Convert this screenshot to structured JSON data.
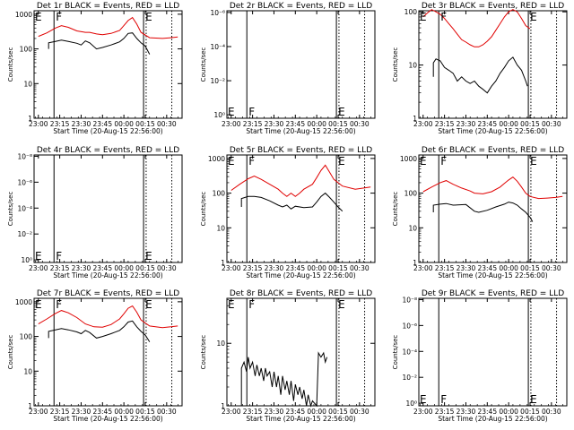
{
  "chart_data": {
    "type": "line",
    "panels": [
      {
        "id": "1",
        "title": "Det 1r BLACK = Events, RED = LLD",
        "ylabel": "Counts/sec",
        "xlabel": "Start Time (20-Aug-15 22:56:00)",
        "y_ticks": [
          "1",
          "10",
          "100",
          "1000"
        ],
        "y_log_range": [
          0,
          3.1
        ],
        "markers": [
          "E",
          "F",
          "E"
        ],
        "series": [
          {
            "color": "#e00000",
            "x": [
              23.0,
              23.1,
              23.2,
              23.27,
              23.35,
              23.45,
              23.55,
              23.6,
              23.68,
              23.75,
              23.85,
              23.95,
              24.0,
              24.05,
              24.1,
              24.15,
              24.2,
              24.3,
              24.45,
              24.55,
              24.63
            ],
            "y": [
              230,
              290,
              400,
              470,
              420,
              330,
              300,
              300,
              270,
              255,
              280,
              340,
              470,
              660,
              800,
              520,
              300,
              210,
              200,
              210,
              220
            ]
          },
          {
            "color": "#000000",
            "x": [
              23.12,
              23.12,
              23.2,
              23.27,
              23.35,
              23.45,
              23.5,
              23.55,
              23.6,
              23.68,
              23.75,
              23.85,
              23.95,
              24.0,
              24.05,
              24.1,
              24.15,
              24.2,
              24.25,
              24.3
            ],
            "y": [
              100,
              150,
              165,
              180,
              165,
              145,
              130,
              170,
              150,
              100,
              110,
              130,
              160,
              200,
              280,
              290,
              200,
              150,
              120,
              70
            ]
          }
        ]
      },
      {
        "id": "2",
        "title": "Det 2r BLACK = Events, RED = LLD",
        "ylabel": "Counts/sec",
        "xlabel": "Start Time (20-Aug-15 22:56:00)",
        "y_ticks": [
          "10⁰",
          "10⁻²",
          "10⁻⁴",
          "10⁻⁶"
        ],
        "y_tick_pos": [
          0,
          2,
          4,
          6
        ],
        "y_log_range": [
          -0.2,
          6.1
        ],
        "markers": [
          "E",
          "F",
          "E"
        ],
        "series": []
      },
      {
        "id": "3",
        "title": "Det 3r BLACK = Events, RED = LLD",
        "ylabel": "Counts/sec",
        "xlabel": "Start Time (20-Aug-15 22:56:00)",
        "y_ticks": [
          "1",
          "10",
          "100"
        ],
        "y_log_range": [
          0,
          2.02
        ],
        "markers": [
          "E",
          "F",
          "E"
        ],
        "series": [
          {
            "color": "#e00000",
            "x": [
              23.0,
              23.05,
              23.1,
              23.15,
              23.2,
              23.25,
              23.3,
              23.35,
              23.4,
              23.45,
              23.5,
              23.55,
              23.6,
              23.65,
              23.7,
              23.75,
              23.8,
              23.85,
              23.9,
              23.95,
              24.0,
              24.05,
              24.1,
              24.15,
              24.2,
              24.25
            ],
            "y": [
              80,
              95,
              110,
              100,
              90,
              75,
              60,
              48,
              38,
              30,
              27,
              24,
              22,
              22,
              24,
              28,
              34,
              45,
              60,
              80,
              100,
              110,
              100,
              75,
              55,
              48
            ]
          },
          {
            "color": "#000000",
            "x": [
              23.12,
              23.12,
              23.15,
              23.2,
              23.25,
              23.3,
              23.35,
              23.4,
              23.45,
              23.5,
              23.55,
              23.6,
              23.65,
              23.7,
              23.75,
              23.8,
              23.85,
              23.9,
              23.95,
              24.0,
              24.05,
              24.1,
              24.15,
              24.2,
              24.22
            ],
            "y": [
              6,
              11,
              13,
              12,
              9,
              8,
              7,
              5,
              6,
              5,
              4.5,
              5,
              4,
              3.5,
              3,
              4,
              5,
              7,
              9,
              12,
              14,
              10,
              8,
              5,
              4
            ]
          }
        ]
      },
      {
        "id": "4",
        "title": "Det 4r BLACK = Events, RED = LLD",
        "ylabel": "Counts/sec",
        "xlabel": "Start Time (20-Aug-15 22:56:00)",
        "y_ticks": [
          "10⁰",
          "10⁻²",
          "10⁻⁴",
          "10⁻⁶",
          "10⁻⁸"
        ],
        "y_tick_pos": [
          0,
          2,
          4,
          6,
          8
        ],
        "y_log_range": [
          -0.2,
          8.1
        ],
        "markers": [
          "E",
          "F",
          "E"
        ],
        "series": []
      },
      {
        "id": "5",
        "title": "Det 5r BLACK = Events, RED = LLD",
        "ylabel": "Counts/sec",
        "xlabel": "Start Time (20-Aug-15 22:56:00)",
        "y_ticks": [
          "1",
          "10",
          "100",
          "1000"
        ],
        "y_log_range": [
          0,
          3.1
        ],
        "markers": [
          "E",
          "F",
          "E"
        ],
        "series": [
          {
            "color": "#e00000",
            "x": [
              23.0,
              23.1,
              23.2,
              23.27,
              23.35,
              23.45,
              23.55,
              23.6,
              23.65,
              23.7,
              23.75,
              23.8,
              23.85,
              23.95,
              24.0,
              24.05,
              24.1,
              24.15,
              24.2,
              24.3,
              24.45,
              24.55,
              24.63
            ],
            "y": [
              120,
              180,
              260,
              310,
              250,
              180,
              130,
              100,
              80,
              100,
              80,
              100,
              130,
              180,
              280,
              450,
              640,
              400,
              250,
              160,
              130,
              140,
              150
            ]
          },
          {
            "color": "#000000",
            "x": [
              23.12,
              23.12,
              23.2,
              23.27,
              23.35,
              23.45,
              23.55,
              23.6,
              23.65,
              23.7,
              23.75,
              23.85,
              23.95,
              24.0,
              24.05,
              24.1,
              24.15,
              24.2,
              24.25,
              24.3
            ],
            "y": [
              40,
              70,
              80,
              80,
              75,
              60,
              45,
              40,
              45,
              35,
              42,
              38,
              40,
              55,
              80,
              100,
              75,
              55,
              40,
              30
            ]
          }
        ]
      },
      {
        "id": "6",
        "title": "Det 6r BLACK = Events, RED = LLD",
        "ylabel": "Counts/sec",
        "xlabel": "Start Time (20-Aug-15 22:56:00)",
        "y_ticks": [
          "1",
          "10",
          "100",
          "1000"
        ],
        "y_log_range": [
          0,
          3.1
        ],
        "markers": [
          "E",
          "F",
          "E"
        ],
        "series": [
          {
            "color": "#e00000",
            "x": [
              23.0,
              23.1,
              23.2,
              23.27,
              23.35,
              23.45,
              23.55,
              23.6,
              23.7,
              23.8,
              23.9,
              23.95,
              24.0,
              24.05,
              24.1,
              24.15,
              24.2,
              24.25,
              24.35,
              24.45,
              24.55,
              24.63
            ],
            "y": [
              110,
              150,
              200,
              230,
              180,
              140,
              115,
              100,
              95,
              110,
              150,
              190,
              240,
              290,
              220,
              150,
              100,
              80,
              70,
              72,
              75,
              80
            ]
          },
          {
            "color": "#000000",
            "x": [
              23.12,
              23.12,
              23.2,
              23.27,
              23.35,
              23.5,
              23.6,
              23.65,
              23.75,
              23.85,
              23.95,
              24.0,
              24.05,
              24.1,
              24.15,
              24.2,
              24.25,
              24.28
            ],
            "y": [
              28,
              45,
              48,
              50,
              45,
              47,
              30,
              28,
              32,
              40,
              48,
              55,
              52,
              45,
              35,
              28,
              20,
              15
            ]
          }
        ]
      },
      {
        "id": "7",
        "title": "Det 7r BLACK = Events, RED = LLD",
        "ylabel": "Counts/sec",
        "xlabel": "Start Time (20-Aug-15 22:56:00)",
        "y_ticks": [
          "1",
          "10",
          "100",
          "1000"
        ],
        "y_log_range": [
          0,
          3.1
        ],
        "markers": [
          "E",
          "F",
          "E"
        ],
        "series": [
          {
            "color": "#e00000",
            "x": [
              23.0,
              23.1,
              23.2,
              23.27,
              23.35,
              23.45,
              23.55,
              23.65,
              23.75,
              23.85,
              23.95,
              24.0,
              24.05,
              24.1,
              24.15,
              24.2,
              24.3,
              24.45,
              24.55,
              24.63
            ],
            "y": [
              230,
              320,
              460,
              560,
              480,
              350,
              230,
              190,
              185,
              220,
              320,
              450,
              650,
              760,
              500,
              300,
              200,
              180,
              190,
              200
            ]
          },
          {
            "color": "#000000",
            "x": [
              23.12,
              23.12,
              23.2,
              23.27,
              23.35,
              23.45,
              23.5,
              23.55,
              23.6,
              23.68,
              23.75,
              23.85,
              23.95,
              24.0,
              24.05,
              24.1,
              24.15,
              24.2,
              24.25,
              24.3
            ],
            "y": [
              90,
              140,
              155,
              170,
              155,
              135,
              120,
              150,
              130,
              90,
              100,
              120,
              150,
              190,
              260,
              280,
              190,
              140,
              110,
              70
            ]
          }
        ]
      },
      {
        "id": "8",
        "title": "Det 8r BLACK = Events, RED = LLD",
        "ylabel": "Counts/sec",
        "xlabel": "Start Time (20-Aug-15 22:56:00)",
        "y_ticks": [
          "1",
          "10"
        ],
        "y_log_range": [
          0,
          1.72
        ],
        "markers": [
          "E",
          "F",
          "E"
        ],
        "series": [
          {
            "color": "#000000",
            "x": [
              23.12,
              23.12,
              23.15,
              23.18,
              23.2,
              23.22,
              23.25,
              23.28,
              23.3,
              23.33,
              23.35,
              23.38,
              23.4,
              23.42,
              23.45,
              23.48,
              23.5,
              23.53,
              23.55,
              23.58,
              23.6,
              23.63,
              23.65,
              23.68,
              23.7,
              23.73,
              23.75,
              23.78,
              23.8,
              23.83,
              23.85,
              23.88,
              23.9,
              23.93,
              23.95,
              24.0,
              24.02,
              24.05,
              24.08,
              24.1,
              24.12
            ],
            "y": [
              1,
              4,
              5,
              3.5,
              6,
              4,
              5,
              3,
              4.5,
              3,
              4,
              2.5,
              4,
              3,
              3.5,
              2,
              3.5,
              2,
              3,
              1.5,
              3,
              1.8,
              2.5,
              1.5,
              2.5,
              1.2,
              2.2,
              1.5,
              2,
              1.3,
              1.8,
              1,
              1.5,
              1,
              1.2,
              1,
              7,
              6,
              7,
              5,
              6
            ]
          }
        ]
      },
      {
        "id": "9",
        "title": "Det 9r BLACK = Events, RED = LLD",
        "ylabel": "Counts/sec",
        "xlabel": "Start Time (20-Aug-15 22:56:00)",
        "y_ticks": [
          "10⁰",
          "10⁻²",
          "10⁻⁴",
          "10⁻⁶",
          "10⁻⁸"
        ],
        "y_tick_pos": [
          0,
          2,
          4,
          6,
          8
        ],
        "y_log_range": [
          -0.2,
          8.1
        ],
        "markers": [
          "E",
          "F",
          "E"
        ],
        "series": []
      }
    ],
    "x_ticks": [
      "23:00",
      "23:15",
      "23:30",
      "23:45",
      "00:00",
      "00:15",
      "00:30"
    ],
    "x_tick_values": [
      23.0,
      23.25,
      23.5,
      23.75,
      24.0,
      24.25,
      24.5
    ],
    "x_range": [
      22.95,
      24.68
    ],
    "vlines": {
      "solid": [
        23.183,
        24.23
      ],
      "dotted": [
        24.26,
        24.56
      ]
    }
  }
}
